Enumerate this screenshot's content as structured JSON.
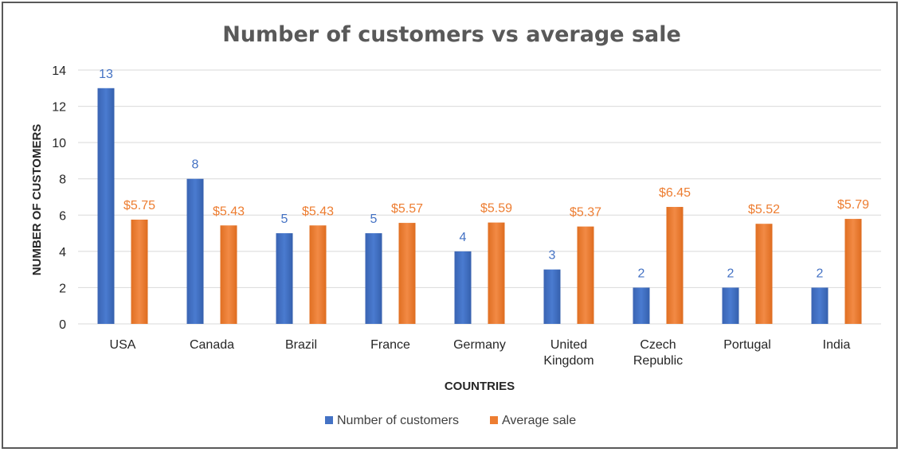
{
  "chart_data": {
    "type": "bar",
    "title": "Number of customers vs average sale",
    "xlabel": "COUNTRIES",
    "ylabel": "NUMBER OF CUSTOMERS",
    "ylim": [
      0,
      14
    ],
    "yticks": [
      0,
      2,
      4,
      6,
      8,
      10,
      12,
      14
    ],
    "grid": true,
    "legend": "bottom",
    "categories": [
      "USA",
      "Canada",
      "Brazil",
      "France",
      "Germany",
      "United Kingdom",
      "Czech Republic",
      "Portugal",
      "India"
    ],
    "category_lines": [
      [
        "USA"
      ],
      [
        "Canada"
      ],
      [
        "Brazil"
      ],
      [
        "France"
      ],
      [
        "Germany"
      ],
      [
        "United",
        "Kingdom"
      ],
      [
        "Czech",
        "Republic"
      ],
      [
        "Portugal"
      ],
      [
        "India"
      ]
    ],
    "series": [
      {
        "name": "Number of customers",
        "color": "#4472c4",
        "values": [
          13,
          8,
          5,
          5,
          4,
          3,
          2,
          2,
          2
        ],
        "labels": [
          "13",
          "8",
          "5",
          "5",
          "4",
          "3",
          "2",
          "2",
          "2"
        ]
      },
      {
        "name": "Average sale",
        "color": "#ed7d31",
        "values": [
          5.75,
          5.43,
          5.43,
          5.57,
          5.59,
          5.37,
          6.45,
          5.52,
          5.79
        ],
        "labels": [
          "$5.75",
          "$5.43",
          "$5.43",
          "$5.57",
          "$5.59",
          "$5.37",
          "$6.45",
          "$5.52",
          "$5.79"
        ]
      }
    ]
  }
}
